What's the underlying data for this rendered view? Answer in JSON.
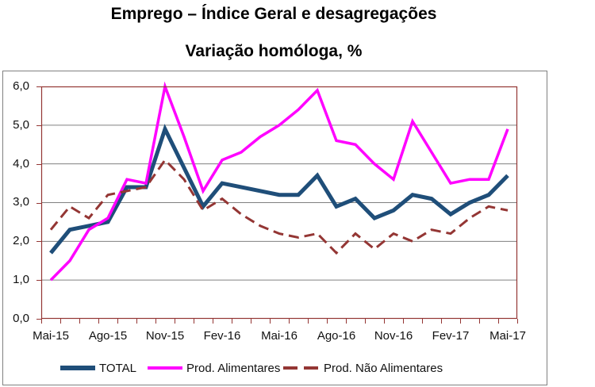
{
  "page": {
    "background": "#FFFFFF"
  },
  "chart_data": {
    "type": "line",
    "title": "Emprego – Índice Geral e desagregações",
    "subtitle": "Variação homóloga, %",
    "x_categories": [
      "Mai-15",
      "Jun-15",
      "Jul-15",
      "Ago-15",
      "Set-15",
      "Out-15",
      "Nov-15",
      "Dez-15",
      "Jan-16",
      "Fev-16",
      "Mar-16",
      "Abr-16",
      "Mai-16",
      "Jun-16",
      "Jul-16",
      "Ago-16",
      "Set-16",
      "Out-16",
      "Nov-16",
      "Dez-16",
      "Jan-17",
      "Fev-17",
      "Mar-17",
      "Abr-17",
      "Mai-17"
    ],
    "series": [
      {
        "name": "TOTAL",
        "color": "#1F4E79",
        "dashed": false,
        "values": [
          1.7,
          2.3,
          2.4,
          2.5,
          3.4,
          3.4,
          4.9,
          3.9,
          2.9,
          3.5,
          3.4,
          3.3,
          3.2,
          3.2,
          3.7,
          2.9,
          3.1,
          2.6,
          2.8,
          3.2,
          3.1,
          2.7,
          3.0,
          3.2,
          3.7
        ]
      },
      {
        "name": "Prod. Alimentares",
        "color": "#FF00FF",
        "dashed": false,
        "values": [
          1.0,
          1.5,
          2.3,
          2.6,
          3.6,
          3.5,
          6.0,
          4.7,
          3.3,
          4.1,
          4.3,
          4.7,
          5.0,
          5.4,
          5.9,
          4.6,
          4.5,
          4.0,
          3.6,
          5.1,
          4.3,
          3.5,
          3.6,
          3.6,
          4.9
        ]
      },
      {
        "name": "Prod. Não Alimentares",
        "color": "#943634",
        "dashed": true,
        "values": [
          2.3,
          2.9,
          2.6,
          3.2,
          3.3,
          3.4,
          4.1,
          3.6,
          2.8,
          3.1,
          2.7,
          2.4,
          2.2,
          2.1,
          2.2,
          1.7,
          2.2,
          1.8,
          2.2,
          2.0,
          2.3,
          2.2,
          2.6,
          2.9,
          2.8
        ]
      }
    ],
    "ylim": [
      0,
      6
    ],
    "y_tick_interval": 1,
    "y_tick_labels": [
      "6,0",
      "5,0",
      "4,0",
      "3,0",
      "2,0",
      "1,0",
      "0,0"
    ],
    "x_tick_labels": [
      "Mai-15",
      "Ago-15",
      "Nov-15",
      "Fev-16",
      "Mai-16",
      "Ago-16",
      "Nov-16",
      "Fev-17",
      "Mai-17"
    ],
    "grid": "horizontal",
    "legend_position": "bottom-inside",
    "axis_color": "#943634",
    "gridline_color": "#808080",
    "frame_color": "#808080",
    "text_color": "#000000"
  }
}
